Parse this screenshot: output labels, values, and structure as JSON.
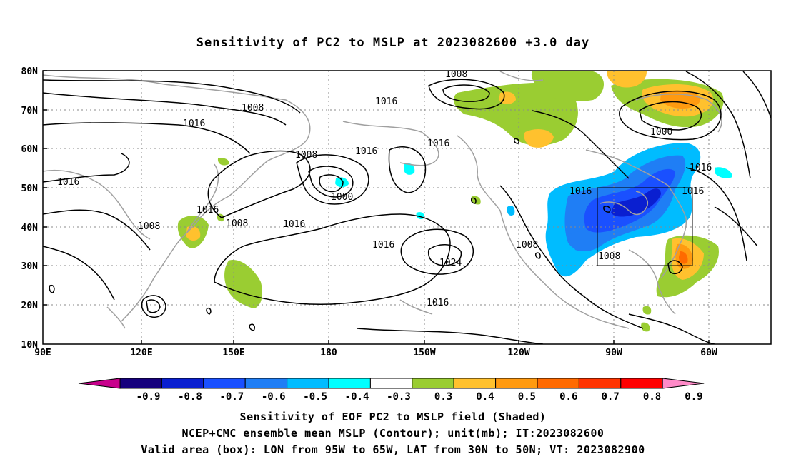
{
  "title": "Sensitivity of PC2 to MSLP at 2023082600 +3.0 day",
  "lat_labels": [
    "80N",
    "70N",
    "60N",
    "50N",
    "40N",
    "30N",
    "20N",
    "10N"
  ],
  "lon_labels": [
    "90E",
    "120E",
    "150E",
    "180",
    "150W",
    "120W",
    "90W",
    "60W"
  ],
  "contour_labels": [
    "1008",
    "1008",
    "1008",
    "1008",
    "1008",
    "1008",
    "1008",
    "1016",
    "1016",
    "1016",
    "1016",
    "1016",
    "1016",
    "1016",
    "1016",
    "1016",
    "1016",
    "1016",
    "1016",
    "1000",
    "1000",
    "1024"
  ],
  "colorbar": {
    "labels": [
      "-0.9",
      "-0.8",
      "-0.7",
      "-0.6",
      "-0.5",
      "-0.4",
      "-0.3",
      "0.3",
      "0.4",
      "0.5",
      "0.6",
      "0.7",
      "0.8",
      "0.9"
    ],
    "colors": [
      "#c8008c",
      "#16007d",
      "#0a1fd0",
      "#1a50ff",
      "#1f7ef5",
      "#00bcff",
      "#00ffff",
      "#ffffff",
      "#9acd32",
      "#ffc12e",
      "#ff9a10",
      "#ff6a00",
      "#ff3300",
      "#ff0000",
      "#ff8ac8"
    ]
  },
  "captions": [
    "Sensitivity of EOF PC2 to MSLP field (Shaded)",
    "NCEP+CMC ensemble mean MSLP (Contour); unit(mb); IT:2023082600",
    "Valid area (box): LON from 95W to 65W, LAT from 30N to 50N; VT: 2023082900"
  ]
}
